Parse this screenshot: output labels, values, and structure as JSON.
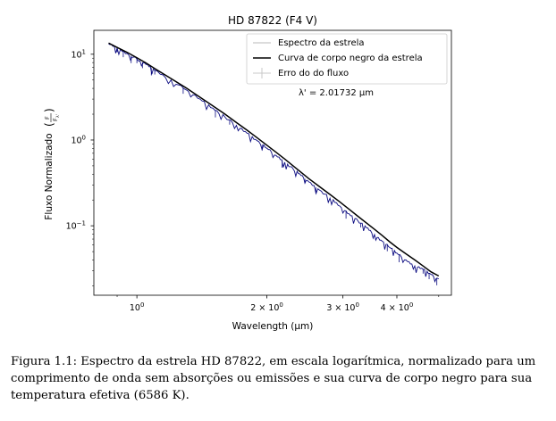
{
  "chart_data": {
    "type": "line",
    "title": "HD 87822 (F4 V)",
    "xlabel": "Wavelength (μm)",
    "ylabel": "Fluxo Normalizado",
    "ylabel_fraction_num": "F",
    "ylabel_fraction_den": "F",
    "ylabel_fraction_den_sub": "λ'",
    "x_scale": "log",
    "y_scale": "log",
    "xlim": [
      0.795,
      5.35
    ],
    "ylim": [
      0.0155,
      19.0
    ],
    "grid": false,
    "legend_position": "top-right",
    "x_ticks": [
      {
        "value": 1.0,
        "base": "10",
        "exp": "0",
        "mult": ""
      },
      {
        "value": 2.0,
        "base": "10",
        "exp": "0",
        "mult": "2 × "
      },
      {
        "value": 3.0,
        "base": "10",
        "exp": "0",
        "mult": "3 × "
      },
      {
        "value": 4.0,
        "base": "10",
        "exp": "0",
        "mult": "4 × "
      }
    ],
    "y_ticks": [
      {
        "value": 10,
        "base": "10",
        "exp": "1"
      },
      {
        "value": 1,
        "base": "10",
        "exp": "0"
      },
      {
        "value": 0.1,
        "base": "10",
        "exp": "−1"
      }
    ],
    "series": [
      {
        "name": "Espectro da estrela",
        "color": "#0a0a80",
        "x": [
          0.86,
          0.9,
          0.95,
          1.0,
          1.05,
          1.1,
          1.2,
          1.3,
          1.4,
          1.5,
          1.6,
          1.7,
          1.8,
          1.9,
          2.0,
          2.1,
          2.2,
          2.3,
          2.4,
          2.5,
          2.65,
          2.8,
          2.95,
          3.1,
          3.25,
          3.4,
          3.55,
          3.7,
          3.85,
          4.0,
          4.2,
          4.4,
          4.6,
          4.8,
          5.0
        ],
        "y": [
          13.2,
          11.8,
          10.2,
          8.8,
          7.6,
          6.5,
          5.0,
          3.85,
          3.0,
          2.35,
          1.85,
          1.48,
          1.2,
          0.98,
          0.8,
          0.66,
          0.55,
          0.46,
          0.385,
          0.325,
          0.26,
          0.21,
          0.17,
          0.138,
          0.114,
          0.095,
          0.079,
          0.066,
          0.056,
          0.048,
          0.04,
          0.034,
          0.031,
          0.027,
          0.024
        ]
      },
      {
        "name": "Curva de corpo negro da estrela",
        "color": "#000000",
        "x": [
          0.86,
          0.9,
          0.95,
          1.0,
          1.05,
          1.1,
          1.2,
          1.3,
          1.4,
          1.5,
          1.6,
          1.7,
          1.8,
          1.9,
          2.0,
          2.1,
          2.2,
          2.3,
          2.4,
          2.5,
          2.65,
          2.8,
          2.95,
          3.1,
          3.25,
          3.4,
          3.55,
          3.7,
          3.85,
          4.0,
          4.2,
          4.4,
          4.6,
          4.8,
          5.0
        ],
        "y": [
          13.5,
          12.0,
          10.5,
          9.1,
          7.9,
          6.8,
          5.2,
          4.05,
          3.15,
          2.5,
          2.0,
          1.6,
          1.3,
          1.06,
          0.87,
          0.72,
          0.6,
          0.5,
          0.42,
          0.355,
          0.285,
          0.232,
          0.19,
          0.156,
          0.129,
          0.108,
          0.091,
          0.077,
          0.065,
          0.056,
          0.047,
          0.04,
          0.034,
          0.029,
          0.026
        ]
      },
      {
        "name": "Erro do do fluxo",
        "color": "#c8c8c8"
      }
    ],
    "legend": [
      {
        "label": "Espectro da estrela",
        "style": "thin-gray-line"
      },
      {
        "label": "Curva de corpo negro da estrela",
        "style": "black-line"
      },
      {
        "label": "Erro do do fluxo",
        "style": "errorbar"
      }
    ],
    "annotation": "λ' = 2.01732 μm"
  },
  "caption": "Figura 1.1: Espectro da estrela HD 87822, em escala logarítmica, normalizado para um comprimento de onda sem absorções ou emissões e sua curva de corpo negro para sua temperatura efetiva (6586 K)."
}
